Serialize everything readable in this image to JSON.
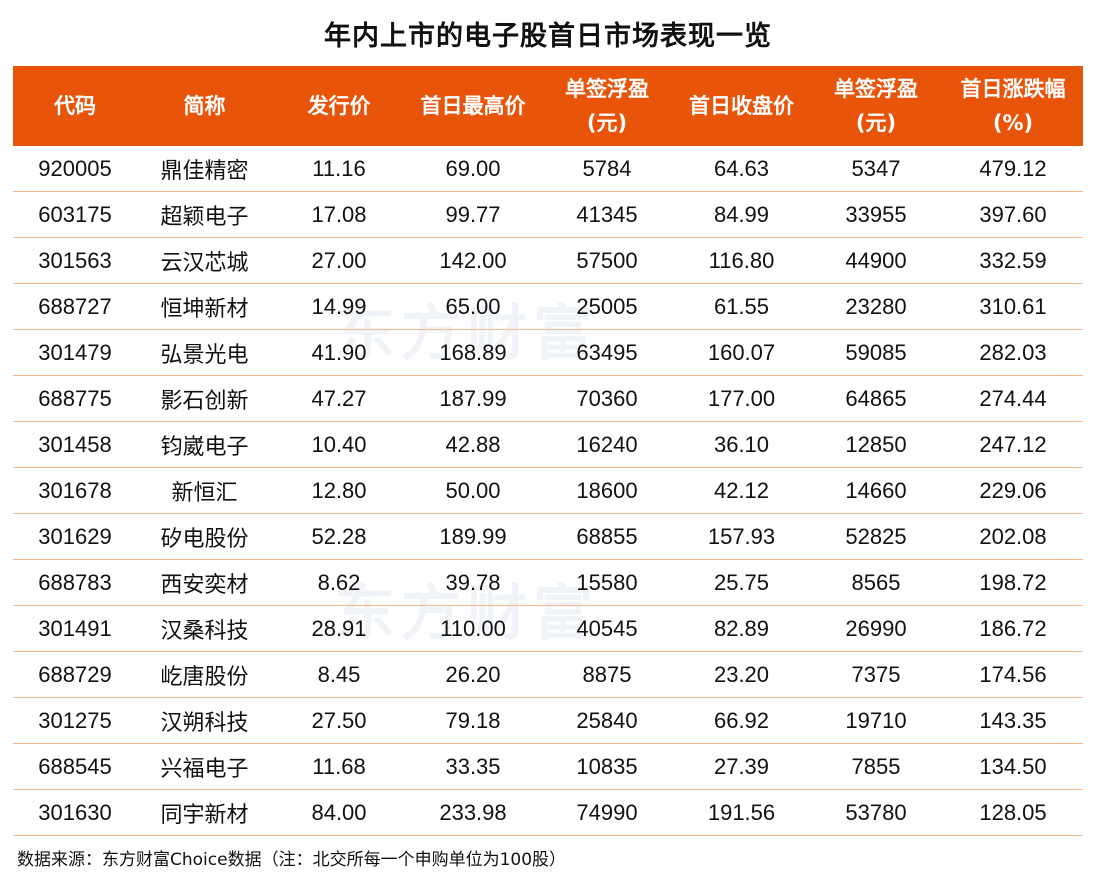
{
  "title": "年内上市的电子股首日市场表现一览",
  "watermark": "东方财富",
  "source": "数据来源：东方财富Choice数据（注：北交所每一个申购单位为100股）",
  "colors": {
    "header_bg": "#E8540A",
    "row_divider": "#F9B98A"
  },
  "chart_data": {
    "type": "table",
    "title": "年内上市的电子股首日市场表现一览",
    "columns": [
      {
        "line1": "代码",
        "line2": ""
      },
      {
        "line1": "简称",
        "line2": ""
      },
      {
        "line1": "发行价",
        "line2": ""
      },
      {
        "line1": "首日最高价",
        "line2": ""
      },
      {
        "line1": "单签浮盈",
        "line2": "(元)"
      },
      {
        "line1": "首日收盘价",
        "line2": ""
      },
      {
        "line1": "单签浮盈",
        "line2": "(元)"
      },
      {
        "line1": "首日涨跌幅",
        "line2": "(%)"
      }
    ],
    "rows": [
      [
        "920005",
        "鼎佳精密",
        "11.16",
        "69.00",
        "5784",
        "64.63",
        "5347",
        "479.12"
      ],
      [
        "603175",
        "超颖电子",
        "17.08",
        "99.77",
        "41345",
        "84.99",
        "33955",
        "397.60"
      ],
      [
        "301563",
        "云汉芯城",
        "27.00",
        "142.00",
        "57500",
        "116.80",
        "44900",
        "332.59"
      ],
      [
        "688727",
        "恒坤新材",
        "14.99",
        "65.00",
        "25005",
        "61.55",
        "23280",
        "310.61"
      ],
      [
        "301479",
        "弘景光电",
        "41.90",
        "168.89",
        "63495",
        "160.07",
        "59085",
        "282.03"
      ],
      [
        "688775",
        "影石创新",
        "47.27",
        "187.99",
        "70360",
        "177.00",
        "64865",
        "274.44"
      ],
      [
        "301458",
        "钧崴电子",
        "10.40",
        "42.88",
        "16240",
        "36.10",
        "12850",
        "247.12"
      ],
      [
        "301678",
        "新恒汇",
        "12.80",
        "50.00",
        "18600",
        "42.12",
        "14660",
        "229.06"
      ],
      [
        "301629",
        "矽电股份",
        "52.28",
        "189.99",
        "68855",
        "157.93",
        "52825",
        "202.08"
      ],
      [
        "688783",
        "西安奕材",
        "8.62",
        "39.78",
        "15580",
        "25.75",
        "8565",
        "198.72"
      ],
      [
        "301491",
        "汉桑科技",
        "28.91",
        "110.00",
        "40545",
        "82.89",
        "26990",
        "186.72"
      ],
      [
        "688729",
        "屹唐股份",
        "8.45",
        "26.20",
        "8875",
        "23.20",
        "7375",
        "174.56"
      ],
      [
        "301275",
        "汉朔科技",
        "27.50",
        "79.18",
        "25840",
        "66.92",
        "19710",
        "143.35"
      ],
      [
        "688545",
        "兴福电子",
        "11.68",
        "33.35",
        "10835",
        "27.39",
        "7855",
        "134.50"
      ],
      [
        "301630",
        "同宇新材",
        "84.00",
        "233.98",
        "74990",
        "191.56",
        "53780",
        "128.05"
      ]
    ]
  }
}
